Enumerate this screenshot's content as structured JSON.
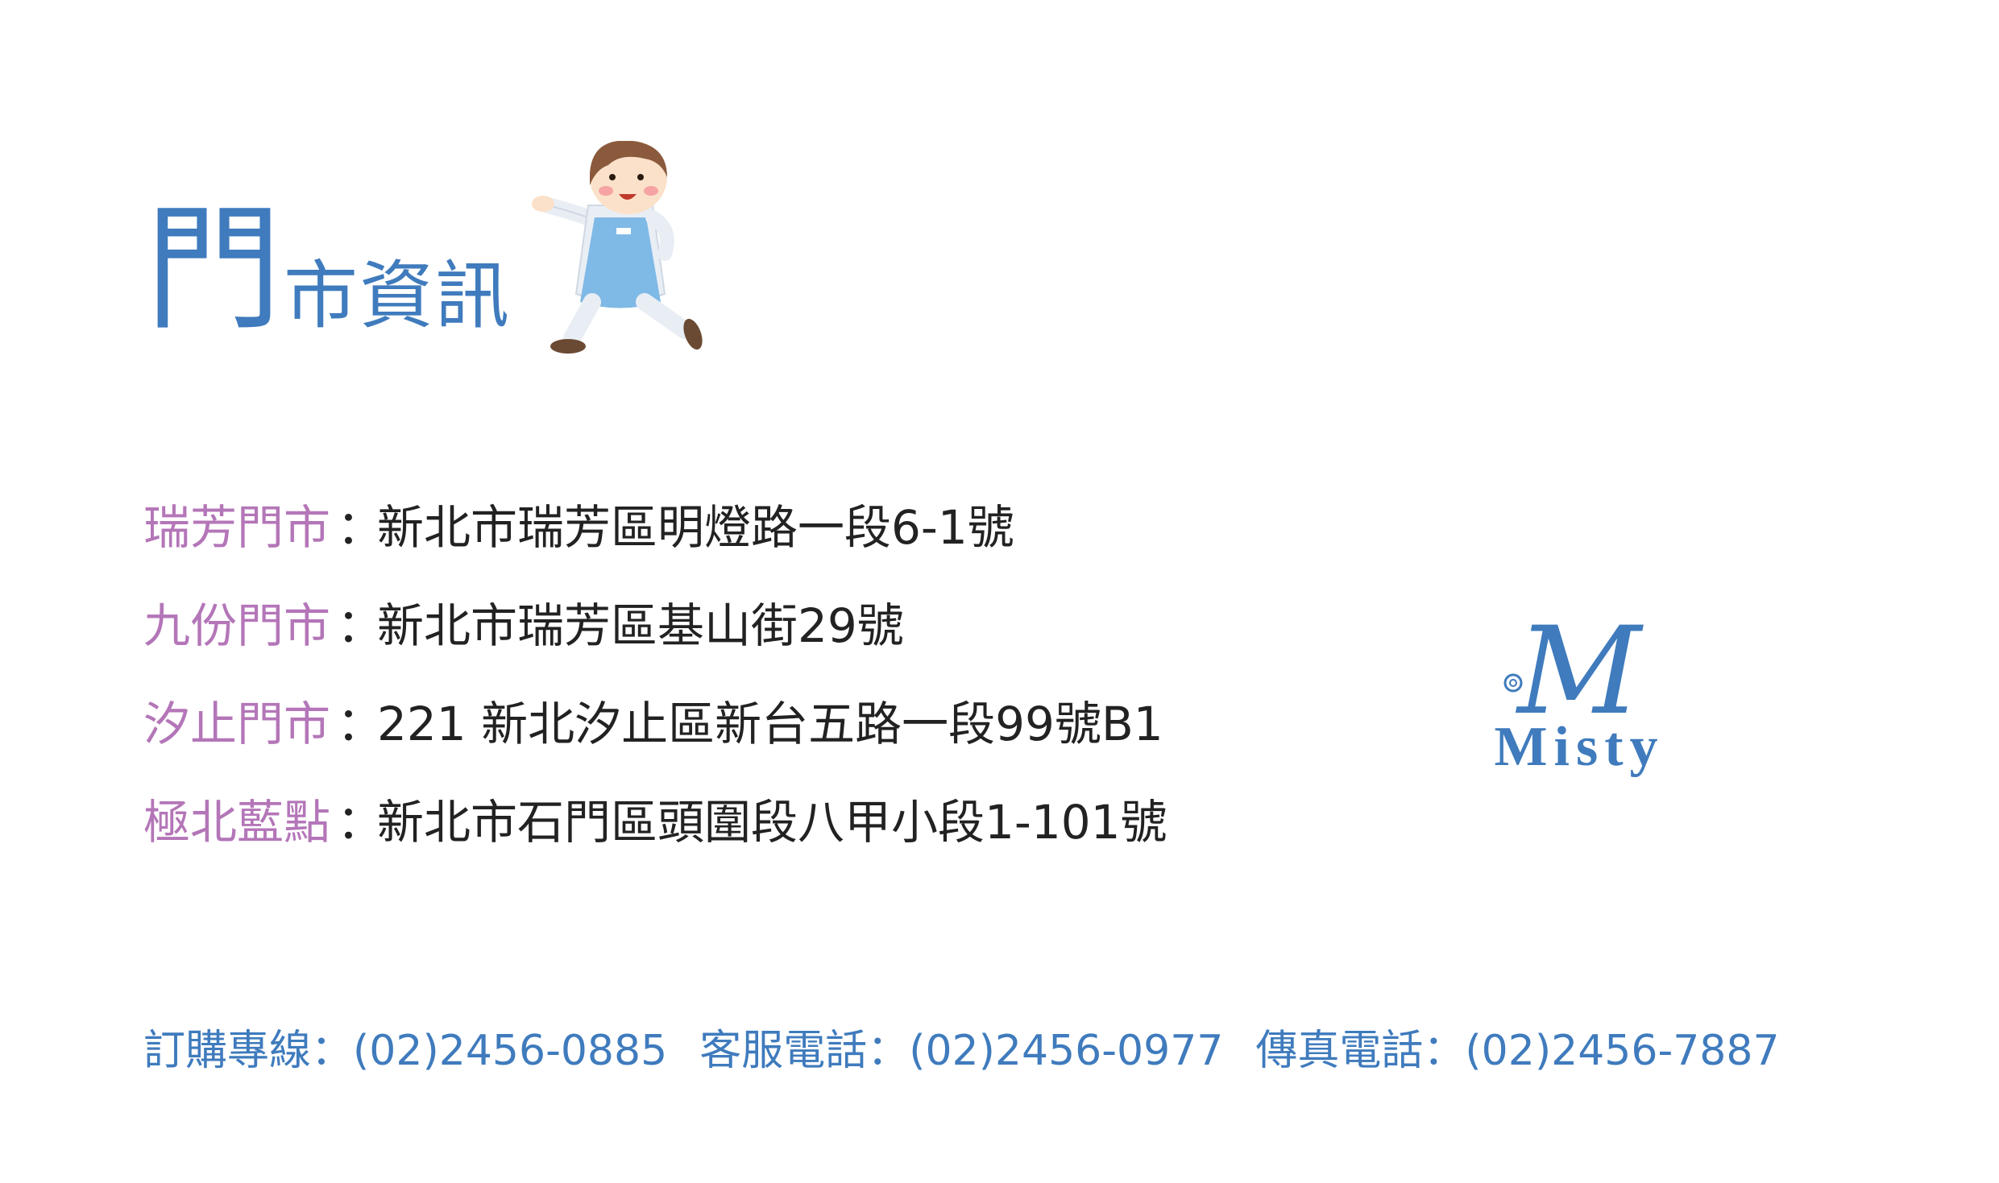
{
  "header": {
    "title_big": "門",
    "title_rest": "市資訊"
  },
  "stores": [
    {
      "name": "瑞芳門市",
      "colon": "：",
      "address": "新北市瑞芳區明燈路一段6-1號"
    },
    {
      "name": "九份門市",
      "colon": "：",
      "address": "新北市瑞芳區基山街29號"
    },
    {
      "name": "汐止門市",
      "colon": "：",
      "address": "221 新北汐止區新台五路一段99號B1"
    },
    {
      "name": "極北藍點",
      "colon": "：",
      "address": "新北市石門區頭圍段八甲小段1-101號"
    }
  ],
  "logo": {
    "monogram": "M",
    "text": "Misty"
  },
  "contact": {
    "order": "訂購專線：(02)2456-0885",
    "service": "客服電話：(02)2456-0977",
    "fax": "傳真電話：(02)2456-7887"
  },
  "colors": {
    "title": "#3f7bbd",
    "store_name": "#b476b8",
    "address": "#222222",
    "contact": "#3f7bbd",
    "logo": "#3f7bbd"
  }
}
